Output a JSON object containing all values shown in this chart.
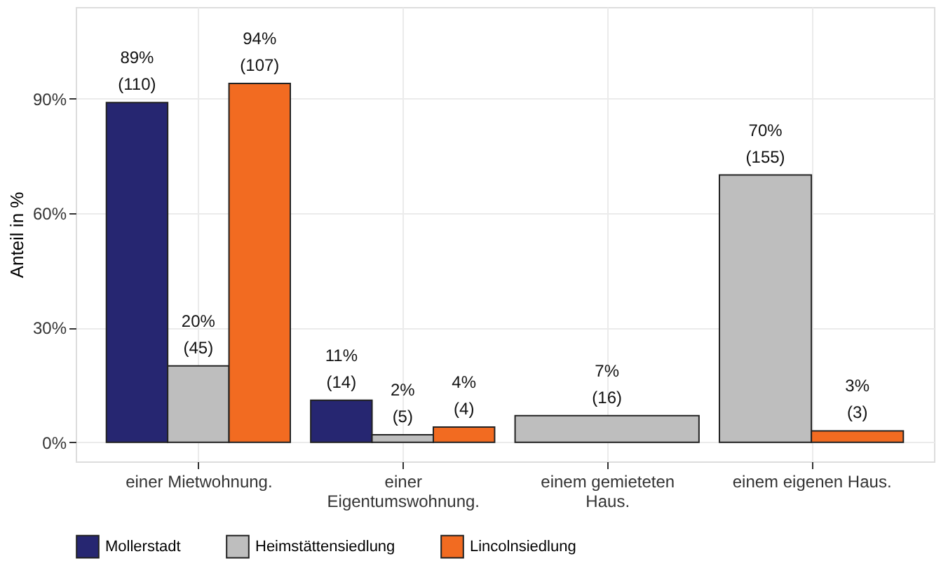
{
  "chart_data": {
    "type": "bar",
    "ylabel": "Anteil in %",
    "categories": [
      "einer Mietwohnung.",
      "einer\nEigentumswohnung.",
      "einem gemieteten\nHaus.",
      "einem eigenen Haus."
    ],
    "series": [
      {
        "name": "Mollerstadt",
        "color": "#262671",
        "values": [
          89,
          11,
          null,
          null
        ],
        "value_labels": [
          "89%\n(110)",
          "11%\n(14)",
          null,
          null
        ]
      },
      {
        "name": "Heimstättensiedlung",
        "color": "#bebebe",
        "values": [
          20,
          2,
          7,
          70
        ],
        "value_labels": [
          "20%\n(45)",
          "2%\n(5)",
          "7%\n(16)",
          "70%\n(155)"
        ]
      },
      {
        "name": "Lincolnsiedlung",
        "color": "#f26b21",
        "values": [
          94,
          4,
          null,
          3
        ],
        "value_labels": [
          "94%\n(107)",
          "4%\n(4)",
          null,
          "3%\n(3)"
        ]
      }
    ],
    "ylim": [
      -5,
      114
    ],
    "yticks": [
      {
        "value": 0,
        "label": "0%"
      },
      {
        "value": 30,
        "label": "30%"
      },
      {
        "value": 60,
        "label": "60%"
      },
      {
        "value": 90,
        "label": "90%"
      }
    ],
    "grid": true,
    "legend": "bottom"
  }
}
